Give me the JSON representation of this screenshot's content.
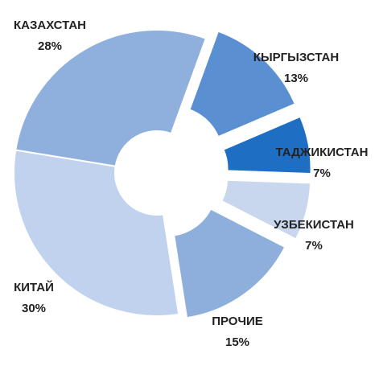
{
  "chart_data": {
    "type": "donut",
    "categories": [
      "КЫРГЫЗСТАН",
      "ТАДЖИКИСТАН",
      "УЗБЕКИСТАН",
      "ПРОЧИЕ",
      "КИТАЙ",
      "КАЗАХСТАН"
    ],
    "values": [
      13,
      7,
      7,
      15,
      30,
      28
    ],
    "value_labels": [
      "13%",
      "7%",
      "7%",
      "15%",
      "30%",
      "28%"
    ],
    "colors": [
      "#5a8fd2",
      "#1e6ec3",
      "#c8d7ee",
      "#8eaedc",
      "#c0d2ee",
      "#8fb0dd"
    ]
  }
}
